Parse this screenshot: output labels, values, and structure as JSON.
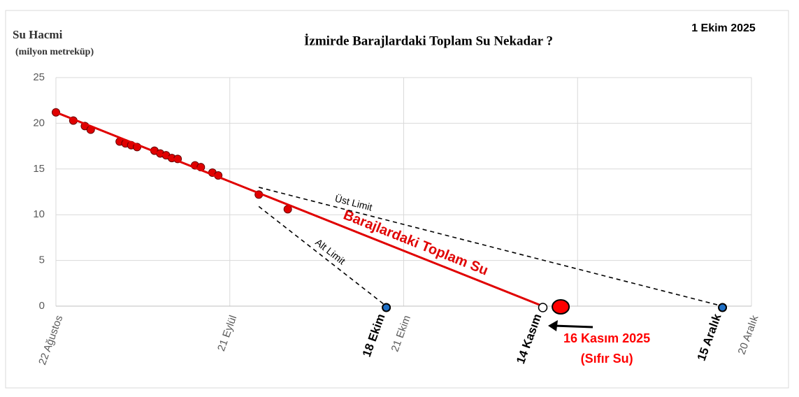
{
  "chart_data": {
    "type": "scatter",
    "title": "İzmirde Barajlardaki Toplam Su Nekadar ?",
    "y_label": "Su Hacmi",
    "y_unit": "(milyon metreküp)",
    "date": "1 Ekim 2025",
    "xlim": [
      0,
      120
    ],
    "ylim": [
      0,
      25
    ],
    "xticks": [
      {
        "value": 0,
        "label": "22 Ağustos"
      },
      {
        "value": 30,
        "label": "21 Eylül"
      },
      {
        "value": 60,
        "label": "21 Ekim"
      },
      {
        "value": 90,
        "label": null
      },
      {
        "value": 120,
        "label": "20 Aralık"
      }
    ],
    "yticks": [
      0,
      5,
      10,
      15,
      20,
      25
    ],
    "grid": true,
    "series": [
      {
        "color": "#e00000",
        "style": "points",
        "x": [
          0,
          3,
          5,
          6,
          11,
          12,
          13,
          14,
          17,
          18,
          19,
          20,
          21,
          24,
          25,
          27,
          28,
          35,
          40
        ],
        "values": [
          21.2,
          20.3,
          19.7,
          19.3,
          18.0,
          17.8,
          17.6,
          17.4,
          17.0,
          16.7,
          16.5,
          16.2,
          16.1,
          15.4,
          15.2,
          14.6,
          14.3,
          12.2,
          10.6
        ]
      },
      {
        "name": "Barajlardaki Toplam Su",
        "color": "#e00000",
        "style": "solid",
        "x": [
          0,
          84
        ],
        "values": [
          21.2,
          0
        ]
      },
      {
        "name": "Üst Limit",
        "color": "#000000",
        "style": "dashed",
        "x": [
          35,
          115
        ],
        "values": [
          13.0,
          0
        ]
      },
      {
        "name": "Alt Limit",
        "color": "#000000",
        "style": "dashed",
        "x": [
          35,
          57
        ],
        "values": [
          10.9,
          0
        ]
      }
    ],
    "markers": [
      {
        "x": 57,
        "y": 0,
        "color": "#1f6fc5",
        "marker": "dot",
        "label": "18 Ekim"
      },
      {
        "x": 84,
        "y": 0,
        "color": "#ffffff",
        "marker": "open",
        "label": "14 Kasım"
      },
      {
        "x": 115,
        "y": 0,
        "color": "#1f6fc5",
        "marker": "dot",
        "label": "15 Aralık"
      },
      {
        "x": 86,
        "y": 0,
        "color": "#ff0000",
        "marker": "large",
        "label": "16 Kasım 2025",
        "sublabel": "(Sıfır Su)"
      }
    ]
  }
}
